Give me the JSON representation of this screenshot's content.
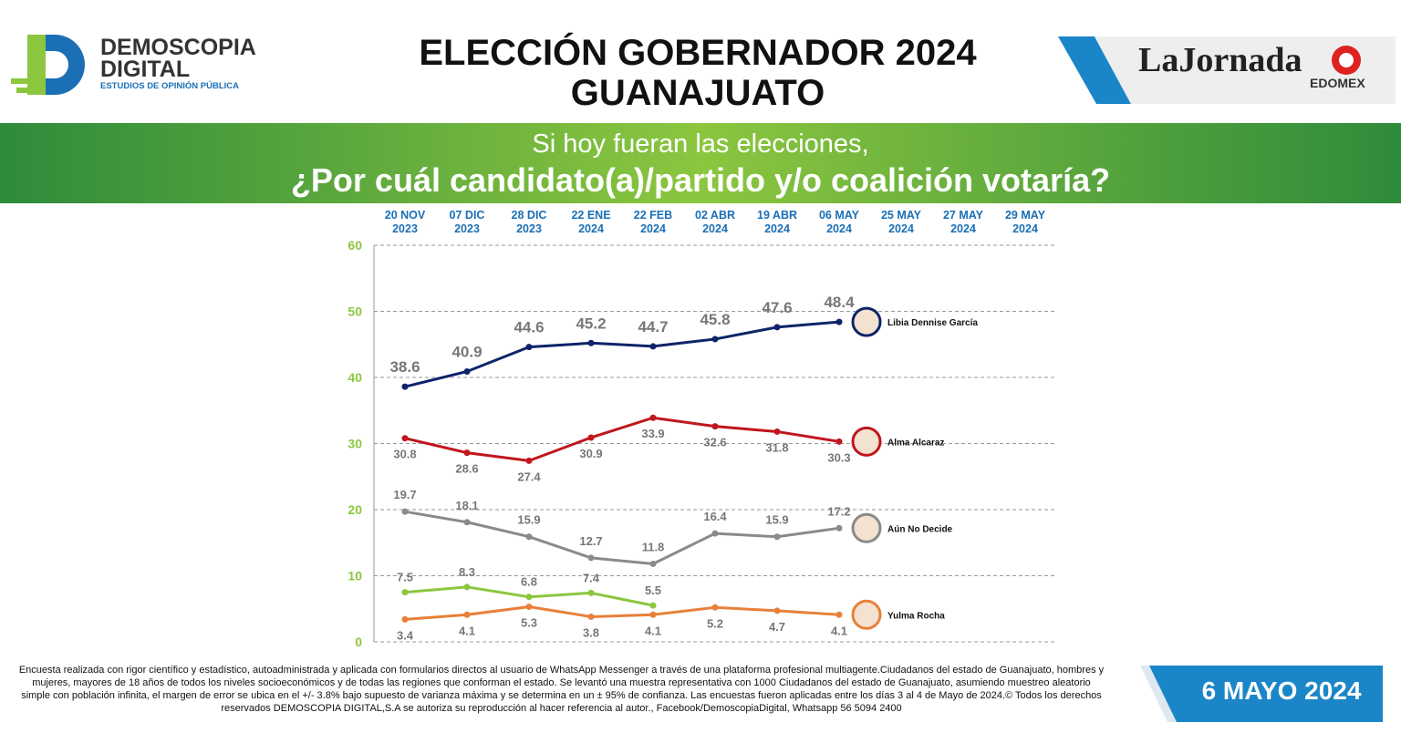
{
  "header": {
    "logo_line1": "DEMOSCOPIA",
    "logo_line2": "DIGITAL",
    "logo_tagline": "ESTUDIOS DE OPINIÓN PÚBLICA",
    "title_line1": "ELECCIÓN GOBERNADOR 2024",
    "title_line2": "GUANAJUATO",
    "media_name": "LaJornada",
    "media_region": "EDOMEX"
  },
  "banner": {
    "line1": "Si hoy fueran las elecciones,",
    "line2": "¿Por cuál candidato(a)/partido y/o coalición votaría?"
  },
  "chart_data": {
    "type": "line",
    "categories": [
      "20 NOV 2023",
      "07 DIC 2023",
      "28 DIC 2023",
      "22 ENE 2024",
      "22 FEB 2024",
      "02 ABR 2024",
      "19 ABR 2024",
      "06 MAY 2024",
      "25 MAY 2024",
      "27 MAY 2024",
      "29 MAY 2024"
    ],
    "series": [
      {
        "name": "Libia Dennise García",
        "color": "#0d2469",
        "values": [
          38.6,
          40.9,
          44.6,
          45.2,
          44.7,
          45.8,
          47.6,
          48.4,
          null,
          null,
          null
        ]
      },
      {
        "name": "Alma Alcaraz",
        "color": "#c0161c",
        "values": [
          30.8,
          28.6,
          27.4,
          30.9,
          33.9,
          32.6,
          31.8,
          30.3,
          null,
          null,
          null
        ]
      },
      {
        "name": "Aún No Decide",
        "color": "#8a8a8a",
        "values": [
          19.7,
          18.1,
          15.9,
          12.7,
          11.8,
          16.4,
          15.9,
          17.2,
          null,
          null,
          null
        ]
      },
      {
        "color": "#8cc63f",
        "values": [
          7.5,
          8.3,
          6.8,
          7.4,
          5.5,
          null,
          null,
          null,
          null,
          null,
          null
        ]
      },
      {
        "name": "Yulma Rocha",
        "color": "#e8803a",
        "values": [
          3.4,
          4.1,
          5.3,
          3.8,
          4.1,
          5.2,
          4.7,
          4.1,
          null,
          null,
          null
        ]
      }
    ],
    "ylim": [
      0,
      60
    ],
    "yticks": [
      0,
      10,
      20,
      30,
      40,
      50,
      60
    ],
    "grid": true
  },
  "footer": {
    "note": "Encuesta realizada con rigor científico y estadístico, autoadministrada y aplicada con formularios directos al usuario de WhatsApp Messenger a través de una plataforma profesional multiagente.Ciudadanos del estado de Guanajuato, hombres y mujeres, mayores de 18 años de todos los niveles socioeconómicos y de todas las regiones que conforman el estado. Se levantó una muestra representativa con 1000 Ciudadanos del estado de Guanajuato, asumiendo muestreo aleatorio simple con población infinita, el margen de error se ubica en el +/- 3.8% bajo supuesto de varianza máxima y se determina en un ± 95% de confianza. Las encuestas fueron aplicadas entre los días 3 al 4 de Mayo de 2024.© Todos los derechos reservados DEMOSCOPIA DIGITAL,S.A se autoriza su reproducción al hacer referencia al autor., Facebook/DemoscopiaDigital, Whatsapp 56 5094 2400",
    "date": "6 MAYO 2024"
  }
}
